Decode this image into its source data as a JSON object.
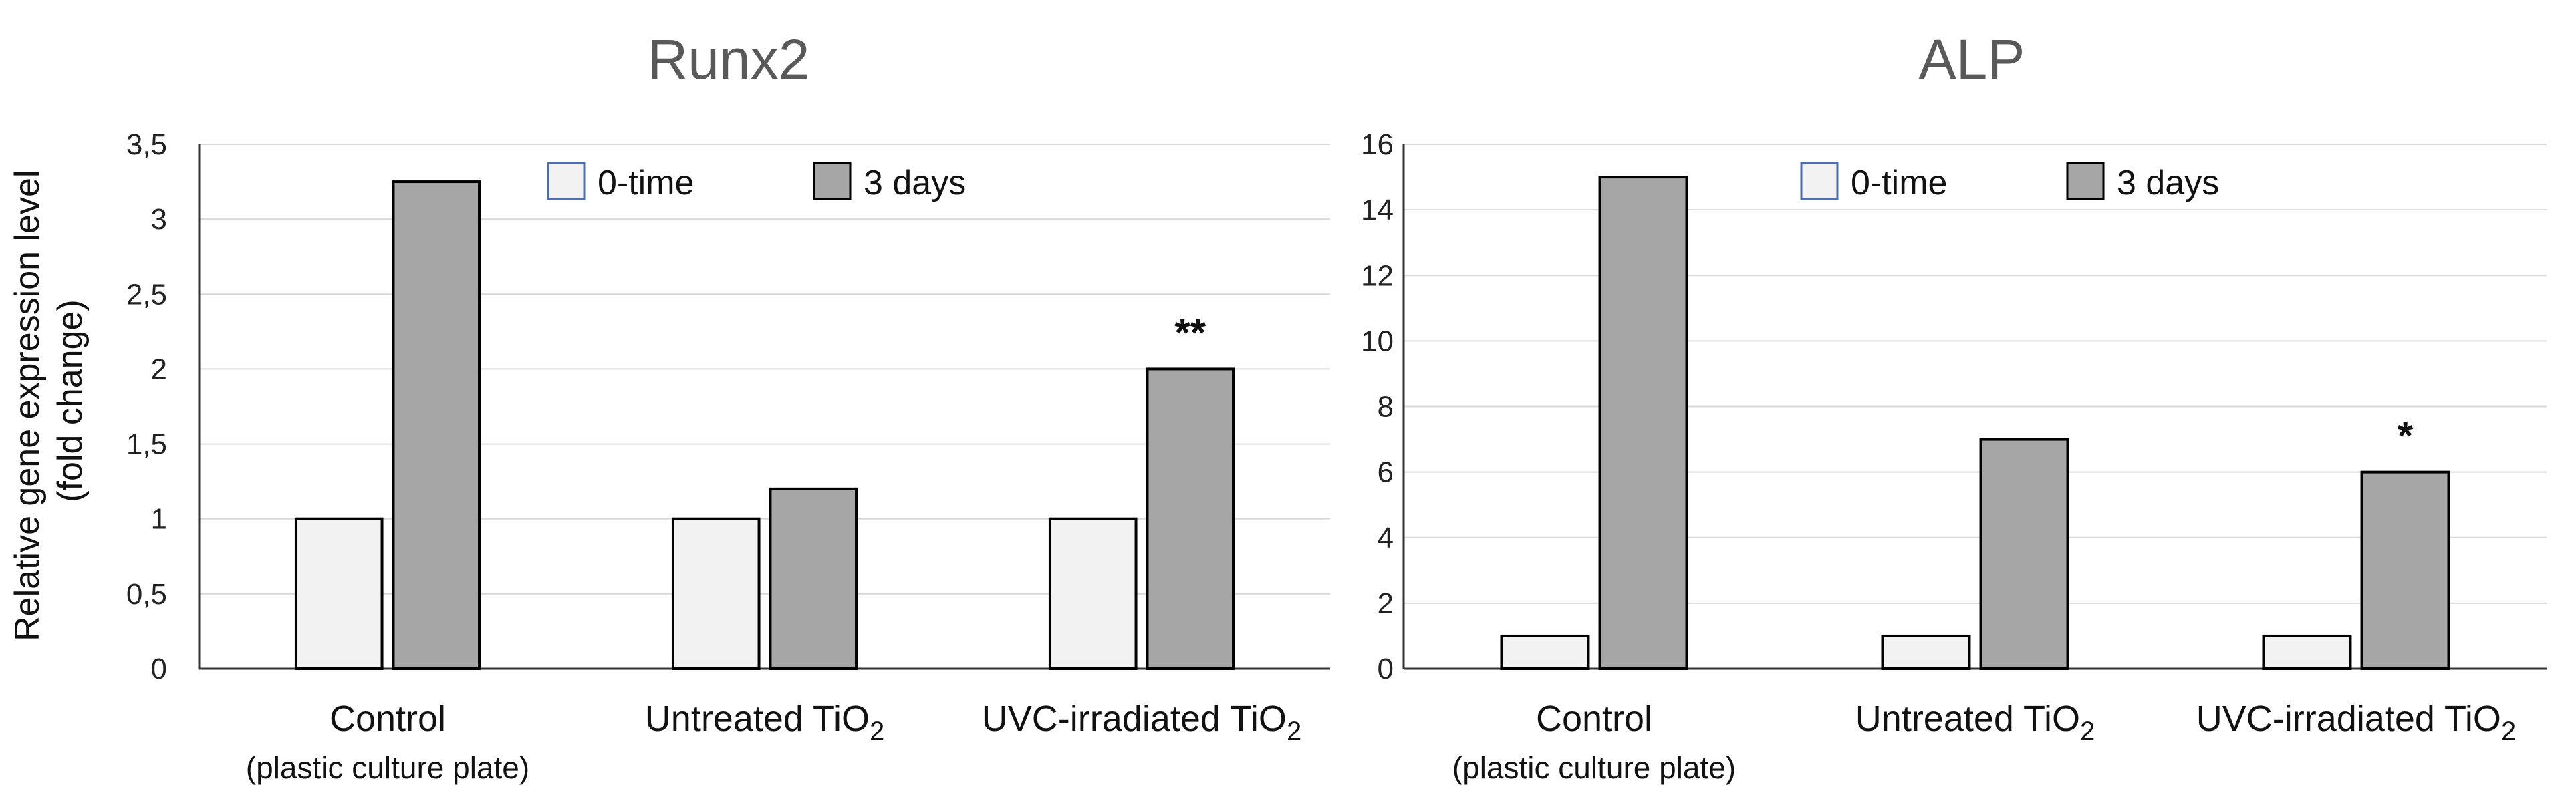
{
  "y_axis_label_line1": "Relative gene expression level",
  "y_axis_label_line2": "(fold change)",
  "colors": {
    "baseline": "#f2f2f2",
    "treated": "#a6a6a6",
    "legend_border_baseline": "#4a6fb5",
    "bar_edge": "#000000"
  },
  "chart_data": [
    {
      "type": "bar",
      "title": "Runx2",
      "categories": [
        {
          "label": "Control",
          "sublabel": "(plastic culture plate)"
        },
        {
          "label": "Untreated TiO",
          "subscript": "2"
        },
        {
          "label": "UVC-irradiated TiO",
          "subscript": "2"
        }
      ],
      "series": [
        {
          "name": "0-time",
          "values": [
            1,
            1,
            1
          ]
        },
        {
          "name": "3 days",
          "values": [
            3.25,
            1.2,
            2.0
          ]
        }
      ],
      "annotations": [
        {
          "category_index": 2,
          "series_index": 1,
          "text": "**"
        }
      ],
      "ylim": [
        0,
        3.5
      ],
      "yticks": [
        0,
        0.5,
        1,
        1.5,
        2,
        2.5,
        3,
        3.5
      ],
      "ytick_labels": [
        "0",
        "0,5",
        "1",
        "1,5",
        "2",
        "2,5",
        "3",
        "3,5"
      ],
      "legend": [
        "0-time",
        "3 days"
      ],
      "grid": true
    },
    {
      "type": "bar",
      "title": "ALP",
      "categories": [
        {
          "label": "Control",
          "sublabel": "(plastic culture plate)"
        },
        {
          "label": "Untreated TiO",
          "subscript": "2"
        },
        {
          "label": "UVC-irradiated TiO",
          "subscript": "2"
        }
      ],
      "series": [
        {
          "name": "0-time",
          "values": [
            1,
            1,
            1
          ]
        },
        {
          "name": "3 days",
          "values": [
            15,
            7,
            6
          ]
        }
      ],
      "annotations": [
        {
          "category_index": 2,
          "series_index": 1,
          "text": "*"
        }
      ],
      "ylim": [
        0,
        16
      ],
      "yticks": [
        0,
        2,
        4,
        6,
        8,
        10,
        12,
        14,
        16
      ],
      "ytick_labels": [
        "0",
        "2",
        "4",
        "6",
        "8",
        "10",
        "12",
        "14",
        "16"
      ],
      "legend": [
        "0-time",
        "3 days"
      ],
      "grid": true
    }
  ]
}
